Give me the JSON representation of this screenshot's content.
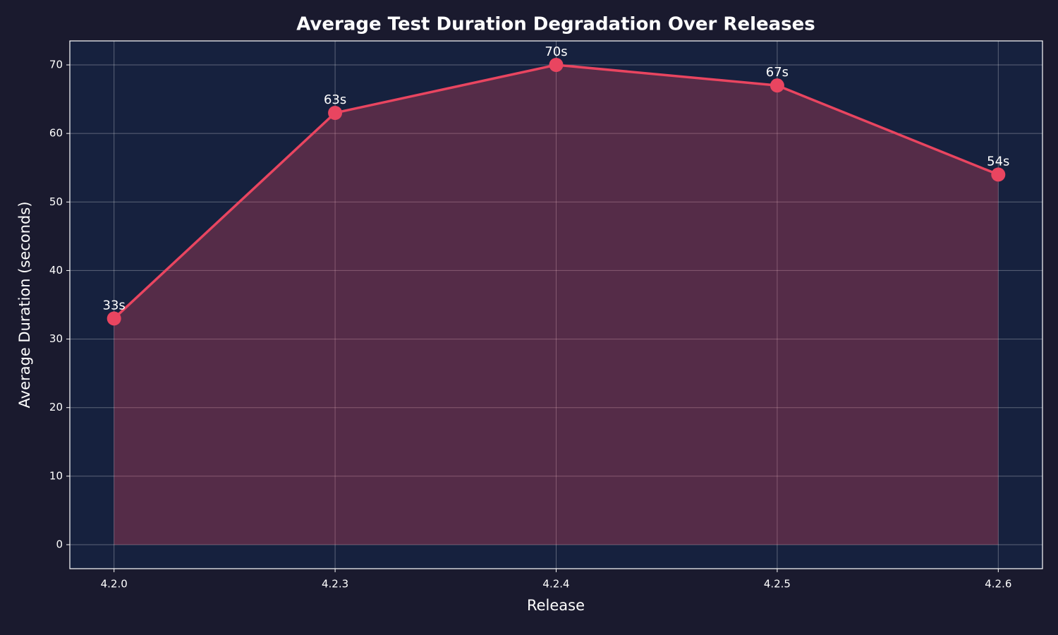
{
  "chart_data": {
    "type": "line",
    "title": "Average Test Duration Degradation Over Releases",
    "x_label": "Release",
    "y_label": "Average Duration (seconds)",
    "categories": [
      "4.2.0",
      "4.2.3",
      "4.2.4",
      "4.2.5",
      "4.2.6"
    ],
    "values": [
      33,
      63,
      70,
      67,
      54
    ],
    "value_labels": [
      "33s",
      "63s",
      "70s",
      "67s",
      "54s"
    ],
    "color": "#e94560",
    "fill_area": true,
    "ylim": [
      -3.5,
      73.5
    ],
    "yticks": [
      0,
      10,
      20,
      30,
      40,
      50,
      60,
      70
    ],
    "grid": true
  }
}
